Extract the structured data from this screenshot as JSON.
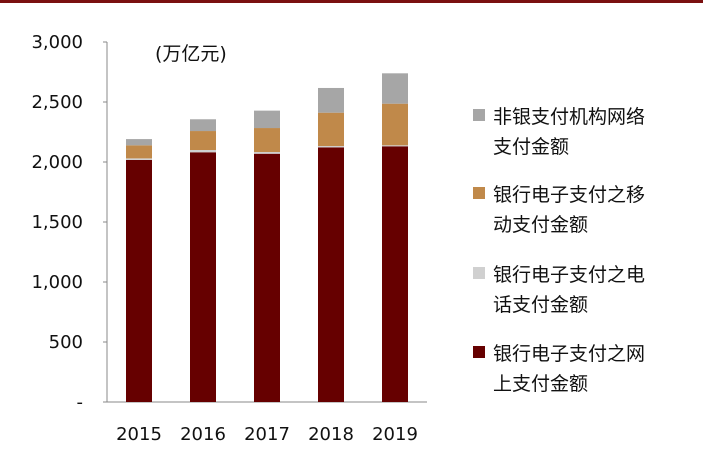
{
  "chart_data": {
    "type": "bar",
    "stacked": true,
    "unit_label": "(万亿元)",
    "categories": [
      "2015",
      "2016",
      "2017",
      "2018",
      "2019"
    ],
    "ylim": [
      0,
      3000
    ],
    "yticks": [
      0,
      500,
      1000,
      1500,
      2000,
      2500,
      3000
    ],
    "ytick_labels": [
      "-",
      "500",
      "1,000",
      "1,500",
      "2,000",
      "2,500",
      "3,000"
    ],
    "grid": false,
    "legend_position": "right",
    "series": [
      {
        "name": "银行电子支付之网上支付金额",
        "color": "#660000",
        "values": [
          2017,
          2081,
          2069,
          2122,
          2131
        ]
      },
      {
        "name": "银行电子支付之电话支付金额",
        "color": "#d0d0d0",
        "values": [
          13,
          19,
          14,
          11,
          8
        ]
      },
      {
        "name": "银行电子支付之移动支付金额",
        "color": "#c0894a",
        "values": [
          109,
          158,
          200,
          278,
          347
        ]
      },
      {
        "name": "非银支付机构网络支付金额",
        "color": "#a6a6a6",
        "values": [
          52,
          98,
          145,
          206,
          253
        ]
      }
    ],
    "legend_lines": [
      [
        "非银支付机构网络",
        "支付金额"
      ],
      [
        "银行电子支付之移",
        "动支付金额"
      ],
      [
        "银行电子支付之电",
        "话支付金额"
      ],
      [
        "银行电子支付之网",
        "上支付金额"
      ]
    ]
  }
}
